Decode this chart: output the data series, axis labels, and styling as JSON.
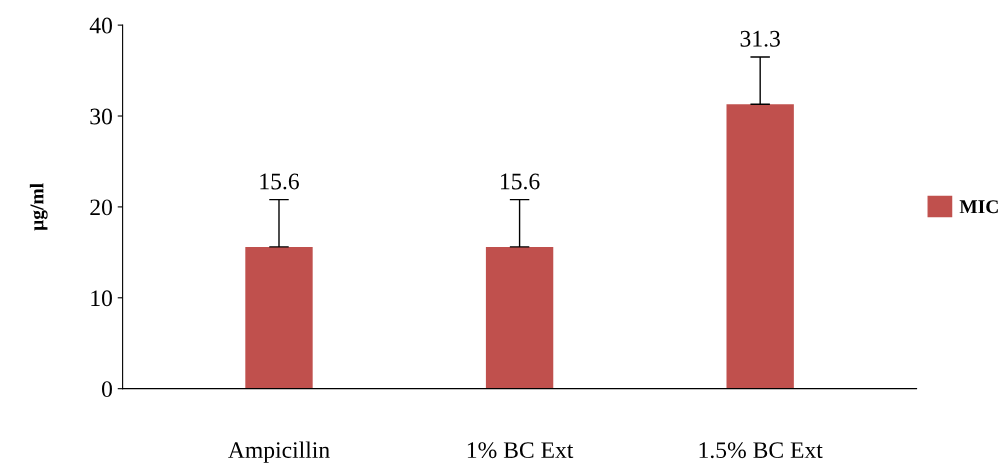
{
  "chart_data": {
    "type": "bar",
    "ylabel": "µg/ml",
    "categories": [
      "Ampicillin",
      "1% BC Ext",
      "1.5% BC Ext"
    ],
    "series": [
      {
        "name": "MIC",
        "color": "#c0504d",
        "values": [
          15.6,
          15.6,
          31.3
        ],
        "errors": [
          [
            15.6,
            20.8
          ],
          [
            15.6,
            20.8
          ],
          [
            31.3,
            36.5
          ]
        ]
      }
    ],
    "ylim": [
      0,
      40
    ],
    "yticks": [
      0,
      10,
      20,
      30,
      40
    ],
    "data_labels": true,
    "legend": "right",
    "grid": false
  }
}
